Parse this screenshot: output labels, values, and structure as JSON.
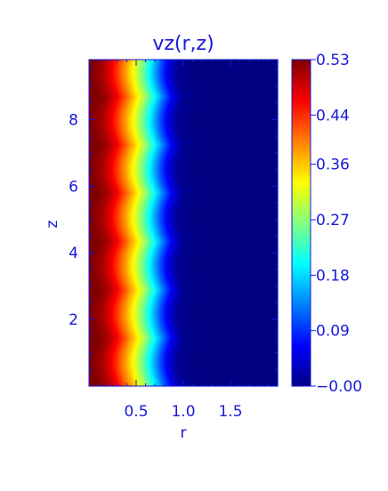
{
  "chart_data": {
    "type": "heatmap",
    "title": "vz(r,z)",
    "xlabel": "r",
    "ylabel": "z",
    "xlim": [
      0.0,
      2.0
    ],
    "ylim": [
      0.0,
      9.8
    ],
    "x_ticks": [
      0.5,
      1.0,
      1.5
    ],
    "x_tick_labels": [
      "0.5",
      "1.0",
      "1.5"
    ],
    "y_ticks": [
      2,
      4,
      6,
      8
    ],
    "y_tick_labels": [
      "2",
      "4",
      "6",
      "8"
    ],
    "colorbar": {
      "min": 0.0,
      "max": 0.53,
      "ticks": [
        0.0,
        0.09,
        0.18,
        0.27,
        0.36,
        0.44,
        0.53
      ],
      "tick_labels": [
        "−0.00",
        "0.09",
        "0.18",
        "0.27",
        "0.36",
        "0.44",
        "0.53"
      ],
      "colormap": "jet"
    },
    "field_profile": {
      "r": [
        0.0,
        0.1,
        0.2,
        0.3,
        0.4,
        0.5,
        0.6,
        0.7,
        0.8,
        0.9,
        1.0,
        1.2,
        1.5,
        2.0
      ],
      "vz": [
        0.53,
        0.53,
        0.51,
        0.47,
        0.41,
        0.35,
        0.28,
        0.2,
        0.12,
        0.05,
        0.01,
        0.0,
        0.0,
        0.0
      ]
    },
    "z_modulation": {
      "wavelength": 1.45,
      "amplitude_r": 0.06
    }
  }
}
